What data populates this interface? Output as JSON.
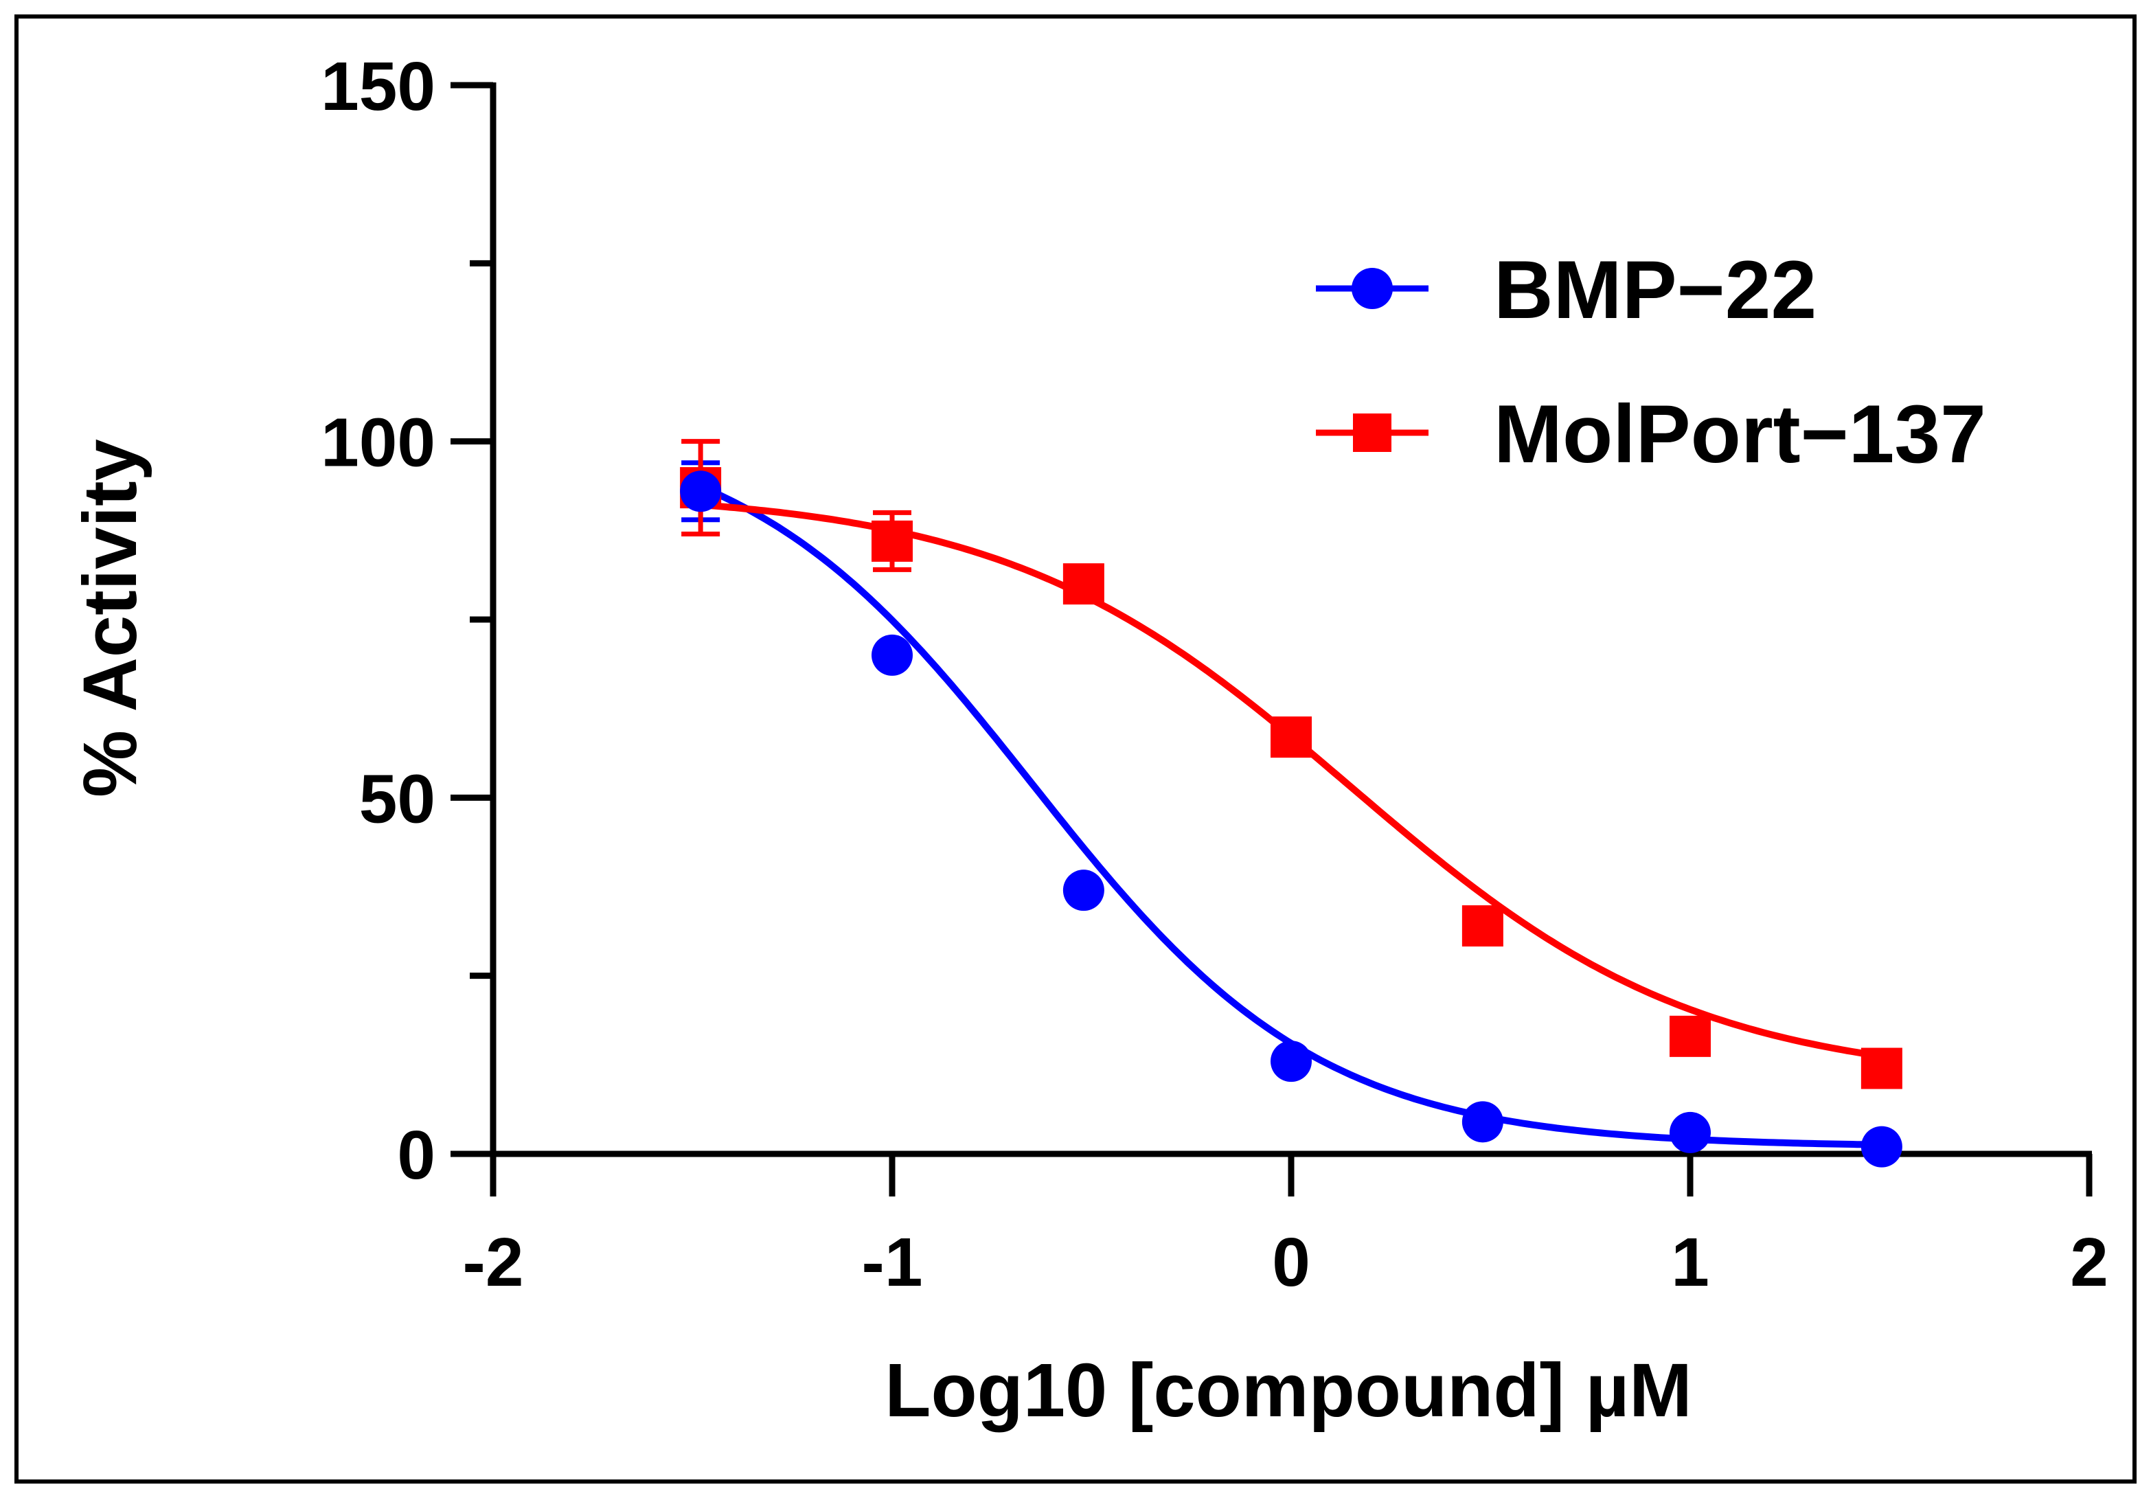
{
  "chart_data": {
    "type": "line",
    "title": "",
    "xlabel": "Log10 [compound] µM",
    "ylabel": "% Activity",
    "xlim": [
      -2,
      2
    ],
    "ylim": [
      0,
      150
    ],
    "x_ticks": [
      -2,
      -1,
      0,
      1,
      2
    ],
    "x_tick_labels": [
      "-2",
      "-1",
      "0",
      "1",
      "2"
    ],
    "y_ticks": [
      0,
      50,
      100,
      150
    ],
    "y_tick_labels": [
      "0",
      "50",
      "100",
      "150"
    ],
    "y_minor_ticks": [
      25,
      75,
      125
    ],
    "legend_position": "top-right",
    "series": [
      {
        "name": "BMP−22",
        "color": "#0000ff",
        "marker": "circle",
        "x": [
          -1.48,
          -1.0,
          -0.52,
          0.0,
          0.48,
          1.0,
          1.48
        ],
        "y": [
          93,
          70,
          37,
          13,
          4.5,
          3,
          1
        ],
        "error": [
          4,
          0,
          0,
          0,
          0,
          0,
          0
        ],
        "fit": {
          "top": 103,
          "bottom": 1,
          "log_ic50": -0.65,
          "hill": 1.2
        }
      },
      {
        "name": "MolPort−137",
        "color": "#ff0000",
        "marker": "square",
        "x": [
          -1.48,
          -1.0,
          -0.52,
          0.0,
          0.48,
          1.0,
          1.48
        ],
        "y": [
          93.5,
          86,
          80,
          58.5,
          32,
          16.5,
          12
        ],
        "error": [
          6.5,
          4,
          0,
          0,
          0,
          0,
          0
        ],
        "fit": {
          "top": 93,
          "bottom": 10,
          "log_ic50": 0.15,
          "hill": 1.0
        }
      }
    ]
  }
}
